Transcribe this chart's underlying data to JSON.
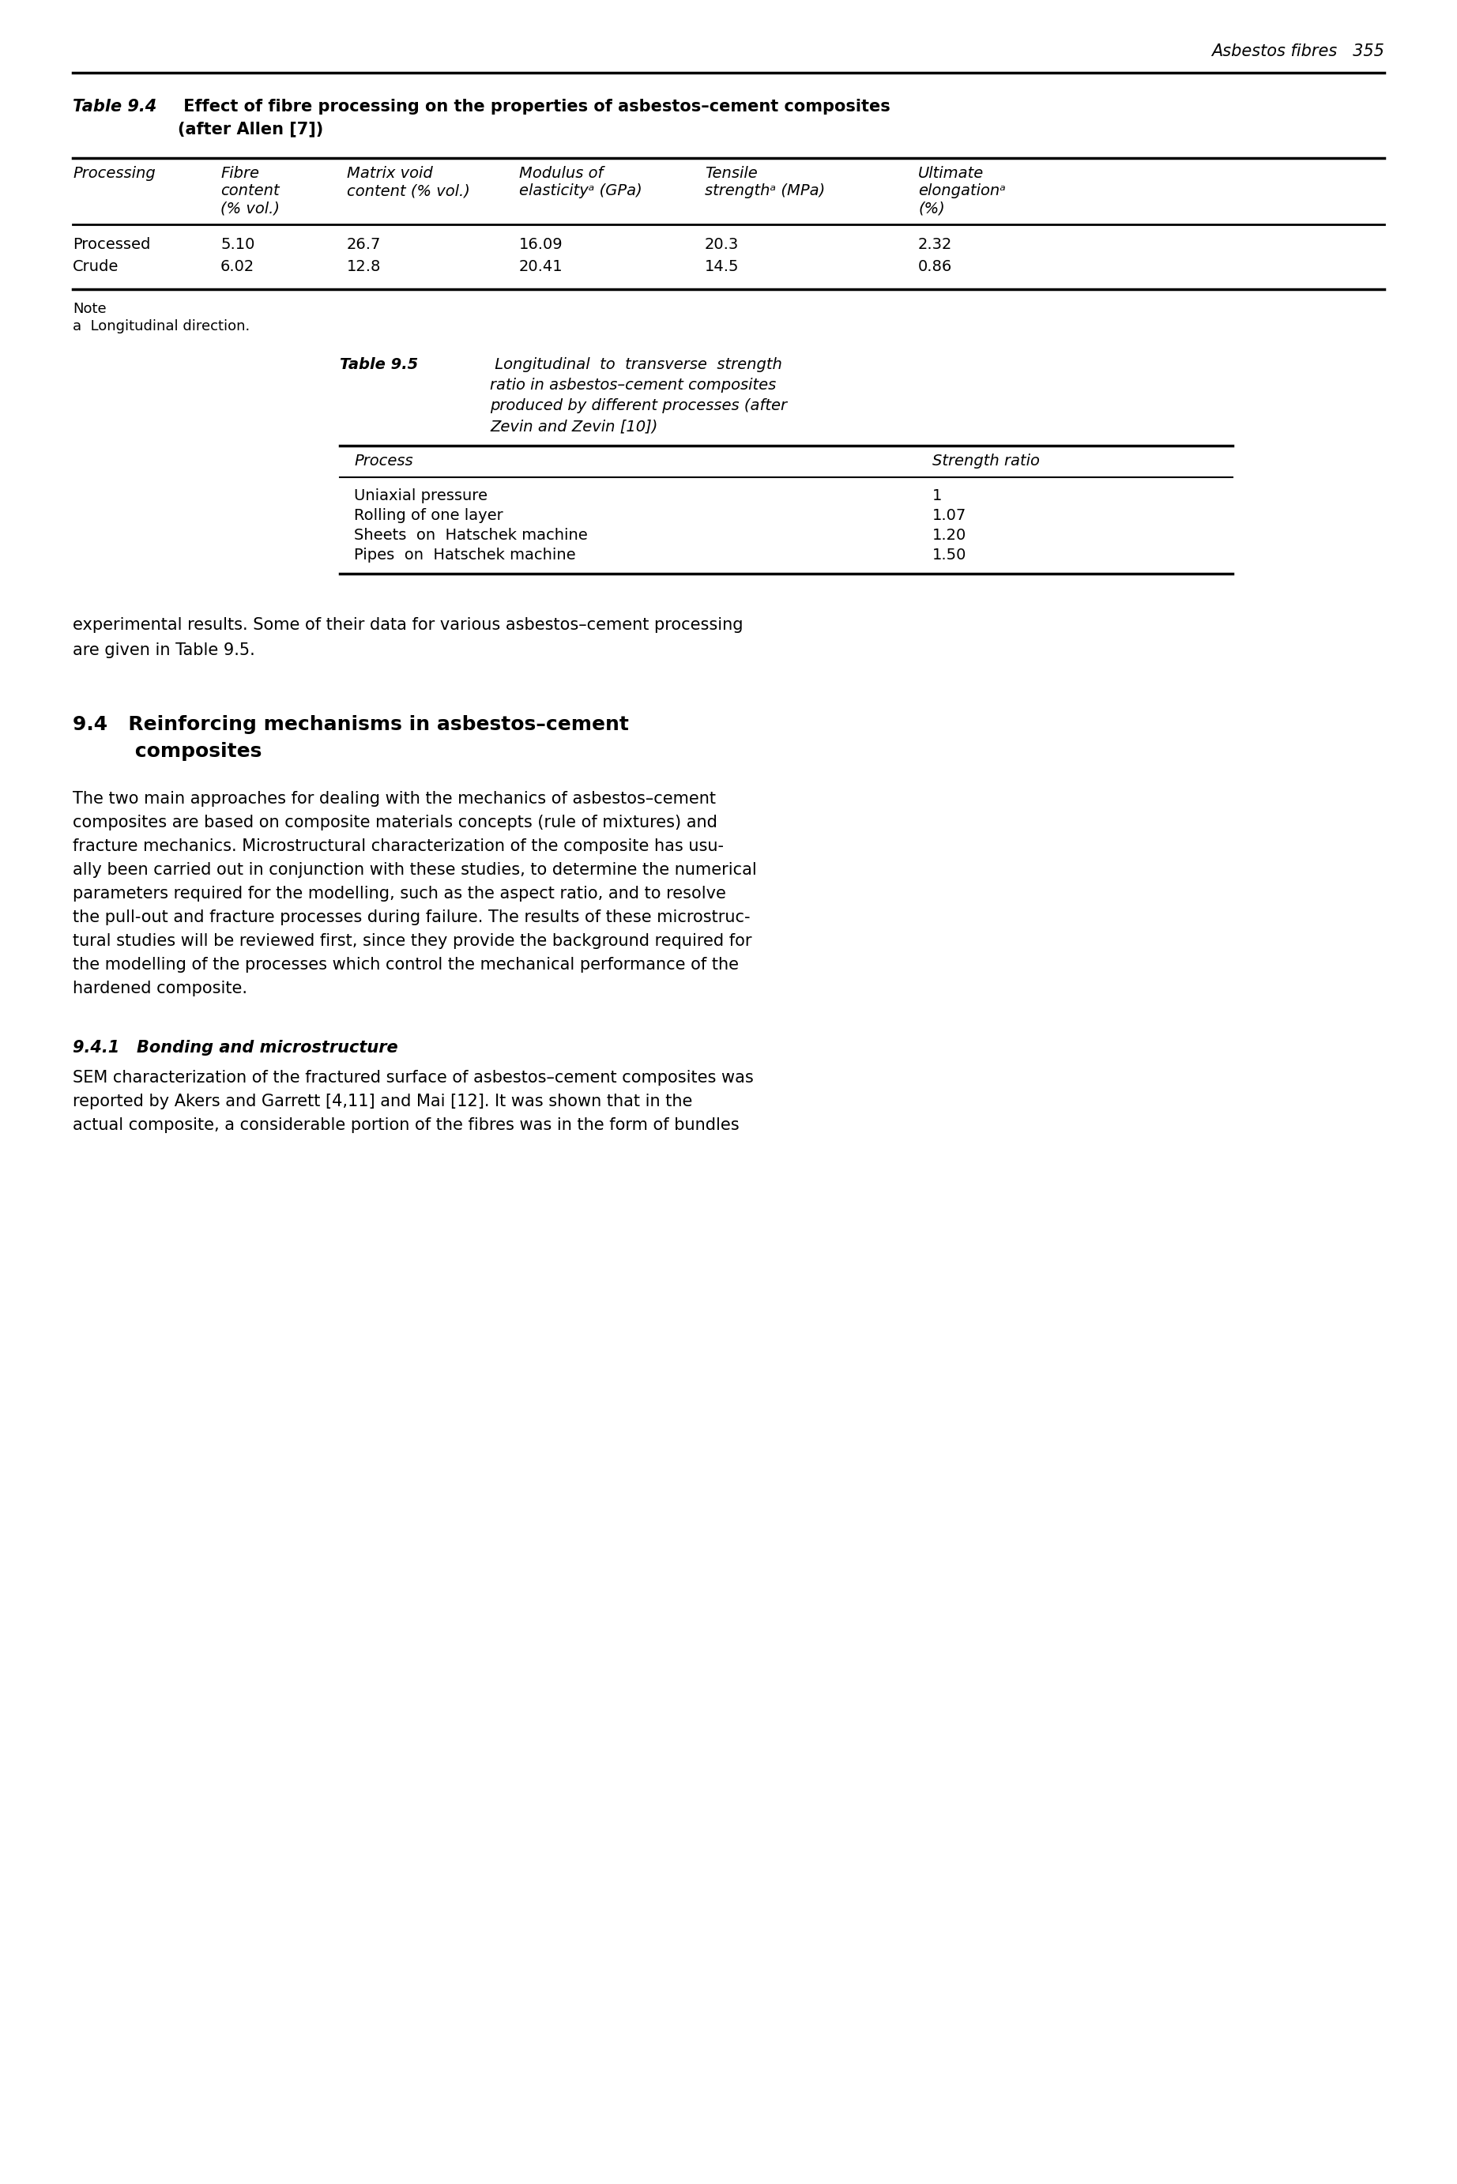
{
  "page_header": "Asbestos fibres   355",
  "table94_title_bold": "Table 9.4",
  "table94_title_rest": " Effect of fibre processing on the properties of asbestos–cement composites",
  "table94_subtitle": "        (after Allen [7])",
  "table94_headers": [
    [
      "Processing"
    ],
    [
      "Fibre",
      "content",
      "(% vol.)"
    ],
    [
      "Matrix void",
      "content (% vol.)"
    ],
    [
      "Modulus of",
      "elasticityᵃ (GPa)"
    ],
    [
      "Tensile",
      "strengthᵃ (MPa)"
    ],
    [
      "Ultimate",
      "elongationᵃ",
      "(%)"
    ]
  ],
  "table94_rows": [
    [
      "Processed",
      "5.10",
      "26.7",
      "16.09",
      "20.3",
      "2.32"
    ],
    [
      "Crude",
      "6.02",
      "12.8",
      "20.41",
      "14.5",
      "0.86"
    ]
  ],
  "table95_title_lines": [
    [
      "Table 9.5",
      " Longitudinal  to  transverse  strength"
    ],
    [
      "",
      "ratio in asbestos–cement composites"
    ],
    [
      "",
      "produced by different processes (after"
    ],
    [
      "",
      "Zevin and Zevin [10])"
    ]
  ],
  "table95_rows": [
    [
      "Uniaxial pressure",
      "1"
    ],
    [
      "Rolling of one layer",
      "1.07"
    ],
    [
      "Sheets  on  Hatschek machine",
      "1.20"
    ],
    [
      "Pipes  on  Hatschek machine",
      "1.50"
    ]
  ],
  "para1_lines": [
    "experimental results. Some of their data for various asbestos–cement processing",
    "are given in Table 9.5."
  ],
  "section_title_lines": [
    "9.4   Reinforcing mechanisms in asbestos–cement",
    "         composites"
  ],
  "body1_lines": [
    "The two main approaches for dealing with the mechanics of asbestos–cement",
    "composites are based on composite materials concepts (rule of mixtures) and",
    "fracture mechanics. Microstructural characterization of the composite has usu-",
    "ally been carried out in conjunction with these studies, to determine the numerical",
    "parameters required for the modelling, such as the aspect ratio, and to resolve",
    "the pull-out and fracture processes during failure. The results of these microstruc-",
    "tural studies will be reviewed first, since they provide the background required for",
    "the modelling of the processes which control the mechanical performance of the",
    "hardened composite."
  ],
  "subsection_title": "9.4.1   Bonding and microstructure",
  "sub_body_lines": [
    "SEM characterization of the fractured surface of asbestos–cement composites was",
    "reported by Akers and Garrett [4,11] and Mai [12]. It was shown that in the",
    "actual composite, a considerable portion of the fibres was in the form of bundles"
  ],
  "bg_color": "#ffffff",
  "text_color": "#000000"
}
